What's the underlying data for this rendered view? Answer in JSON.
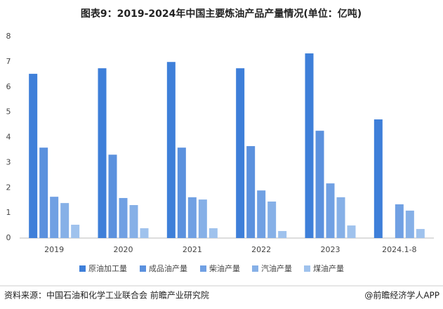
{
  "chart_data": {
    "type": "grouped_bar",
    "title": "图表9：2019-2024年中国主要炼油产品产量情况(单位：亿吨)",
    "categories": [
      "2019",
      "2020",
      "2021",
      "2022",
      "2023",
      "2024.1-8"
    ],
    "series": [
      {
        "name": "原油加工量",
        "color": "#3e7fd9",
        "values": [
          6.52,
          6.74,
          6.99,
          6.74,
          7.33,
          4.71
        ]
      },
      {
        "name": "成品油产量",
        "color": "#5b91de",
        "values": [
          3.59,
          3.31,
          3.59,
          3.65,
          4.26,
          null
        ]
      },
      {
        "name": "柴油产量",
        "color": "#70a0e3",
        "values": [
          1.64,
          1.59,
          1.62,
          1.89,
          2.17,
          1.34
        ]
      },
      {
        "name": "汽油产量",
        "color": "#86b0e7",
        "values": [
          1.39,
          1.31,
          1.53,
          1.45,
          1.62,
          1.09
        ]
      },
      {
        "name": "煤油产量",
        "color": "#9fc2ed",
        "values": [
          0.53,
          0.39,
          0.39,
          0.28,
          0.5,
          0.36
        ]
      }
    ],
    "ylim": [
      0,
      8
    ],
    "yticks": [
      0,
      1,
      2,
      3,
      4,
      5,
      6,
      7,
      8
    ],
    "source": "资料来源：中国石油和化学工业联合会 前瞻产业研究院",
    "credit": "@前瞻经济学人APP"
  }
}
